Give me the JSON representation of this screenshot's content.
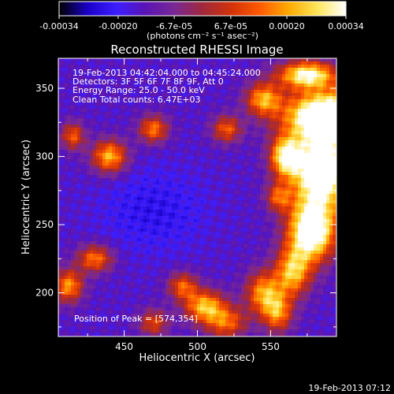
{
  "chart_data": {
    "type": "heatmap",
    "title": "Reconstructed RHESSI Image",
    "xlabel": "Heliocentric X (arcsec)",
    "ylabel": "Heliocentric Y (arcsec)",
    "xlim": [
      405,
      595
    ],
    "ylim": [
      168,
      372
    ],
    "x_ticks": [
      450,
      500,
      550
    ],
    "y_ticks": [
      200,
      250,
      300,
      350
    ],
    "colorbar": {
      "range": [
        -0.00034,
        0.00034
      ],
      "tick_values": [
        -0.00034,
        -0.0002,
        -6.7e-05,
        6.7e-05,
        0.0002,
        0.00034
      ],
      "tick_labels": [
        "-0.00034",
        "-0.00020",
        "-6.7e-05",
        "6.7e-05",
        "0.00020",
        "0.00034"
      ],
      "units_label": "(photons cm⁻² s⁻¹ asec⁻²)"
    },
    "annotations": [
      "19-Feb-2013 04:42:04.000 to 04:45:24.000",
      "Detectors: 3F 5F 6F 7F 8F 9F, Att 0",
      "Energy Range: 25.0 - 50.0 keV",
      "Clean    Total counts: 6.47E+03",
      "Position of Peak = [574,354]"
    ],
    "footer": "19-Feb-2013 07:12",
    "peak": {
      "x": 574,
      "y": 354
    },
    "colormap_colors": [
      "#000000",
      "#1a00c8",
      "#3c1eff",
      "#5a14b4",
      "#782896",
      "#a0283c",
      "#d2320a",
      "#ff5a00",
      "#ffaa00",
      "#ffe65a",
      "#ffffff"
    ]
  }
}
